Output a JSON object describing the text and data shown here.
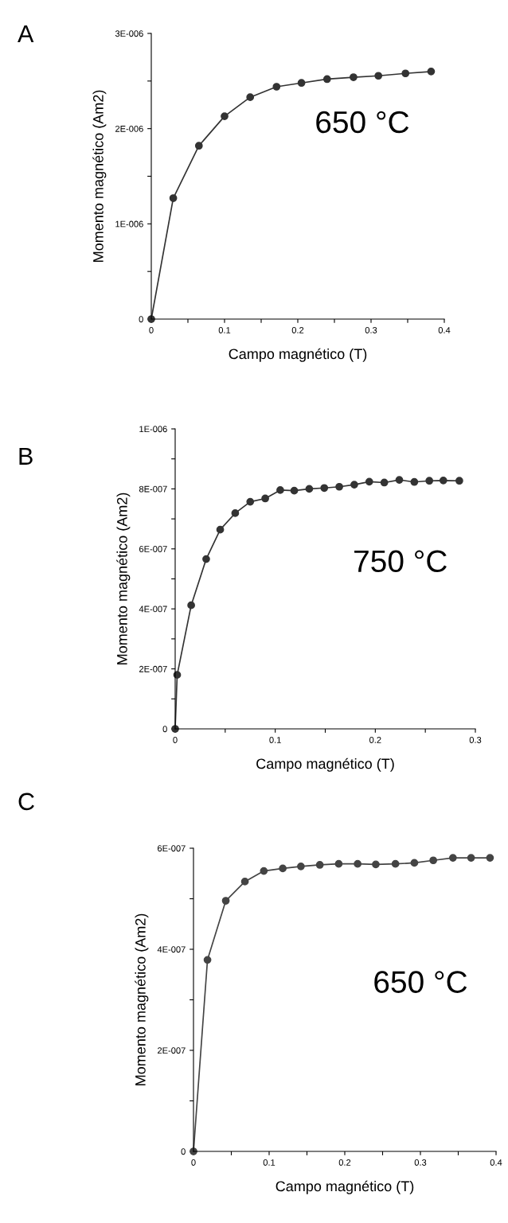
{
  "chart_data": [
    {
      "type": "line",
      "title": "A",
      "xlabel": "Campo magnético (T)",
      "ylabel": "Momento magnético (Am2)",
      "annotations": [
        "650 °C"
      ],
      "marker": "circle",
      "line_style": "solid",
      "grid": false,
      "legend": false,
      "x": [
        0,
        0.03,
        0.065,
        0.1,
        0.135,
        0.171,
        0.205,
        0.24,
        0.276,
        0.31,
        0.347,
        0.382
      ],
      "series": [
        {
          "color": "#333333",
          "values": [
            0,
            1.27e-06,
            1.82e-06,
            2.13e-06,
            2.33e-06,
            2.44e-06,
            2.48e-06,
            2.52e-06,
            2.54e-06,
            2.555e-06,
            2.58e-06,
            2.6e-06
          ]
        }
      ],
      "xlim": [
        0,
        0.4
      ],
      "xticks": [
        0,
        {
          "value": 0.05,
          "label": null
        },
        0.1,
        {
          "value": 0.15,
          "label": null
        },
        0.2,
        {
          "value": 0.25,
          "label": null
        },
        0.3,
        {
          "value": 0.35,
          "label": null
        },
        0.4
      ],
      "ylim": [
        0,
        3e-06
      ],
      "yticks": [
        {
          "value": 0,
          "label": "0"
        },
        {
          "value": 5e-07,
          "label": null
        },
        {
          "value": 1e-06,
          "label": "1E-006"
        },
        {
          "value": 1.5e-06,
          "label": null
        },
        {
          "value": 2e-06,
          "label": "2E-006"
        },
        {
          "value": 2.5e-06,
          "label": null
        },
        {
          "value": 3e-06,
          "label": "3E-006"
        }
      ]
    },
    {
      "type": "line",
      "title": "B",
      "xlabel": "Campo magnético (T)",
      "ylabel": "Momento magnético (Am2)",
      "annotations": [
        "750 °C"
      ],
      "marker": "circle",
      "line_style": "solid",
      "grid": false,
      "legend": false,
      "x": [
        0,
        0.002,
        0.016,
        0.031,
        0.045,
        0.06,
        0.075,
        0.09,
        0.105,
        0.119,
        0.134,
        0.149,
        0.164,
        0.179,
        0.194,
        0.209,
        0.224,
        0.239,
        0.254,
        0.268,
        0.284
      ],
      "series": [
        {
          "color": "#333333",
          "values": [
            0,
            1.8e-07,
            4.12e-07,
            5.66e-07,
            6.64e-07,
            7.19e-07,
            7.57e-07,
            7.68e-07,
            7.96e-07,
            7.94e-07,
            8e-07,
            8.03e-07,
            8.07e-07,
            8.14e-07,
            8.24e-07,
            8.21e-07,
            8.3e-07,
            8.23e-07,
            8.27e-07,
            8.28e-07,
            8.27e-07
          ]
        }
      ],
      "xlim": [
        0,
        0.3
      ],
      "xticks": [
        0,
        {
          "value": 0.05,
          "label": null
        },
        0.1,
        {
          "value": 0.15,
          "label": null
        },
        0.2,
        {
          "value": 0.25,
          "label": null
        },
        0.3
      ],
      "ylim": [
        0,
        1e-06
      ],
      "yticks": [
        {
          "value": 0,
          "label": "0"
        },
        {
          "value": 1e-07,
          "label": null
        },
        {
          "value": 2e-07,
          "label": "2E-007"
        },
        {
          "value": 3e-07,
          "label": null
        },
        {
          "value": 4e-07,
          "label": "4E-007"
        },
        {
          "value": 5e-07,
          "label": null
        },
        {
          "value": 6e-07,
          "label": "6E-007"
        },
        {
          "value": 7e-07,
          "label": null
        },
        {
          "value": 8e-07,
          "label": "8E-007"
        },
        {
          "value": 9e-07,
          "label": null
        },
        {
          "value": 1e-06,
          "label": "1E-006"
        }
      ]
    },
    {
      "type": "line",
      "title": "C",
      "xlabel": "Campo magnético (T)",
      "ylabel": "Momento magnético (Am2)",
      "annotations": [
        "650 °C"
      ],
      "marker": "circle",
      "line_style": "solid",
      "grid": false,
      "legend": false,
      "x": [
        0,
        0.0185,
        0.0427,
        0.068,
        0.093,
        0.118,
        0.142,
        0.167,
        0.192,
        0.217,
        0.241,
        0.267,
        0.292,
        0.317,
        0.343,
        0.367,
        0.392
      ],
      "series": [
        {
          "color": "#444444",
          "values": [
            0,
            3.79e-07,
            4.96e-07,
            5.34e-07,
            5.55e-07,
            5.6e-07,
            5.64e-07,
            5.67e-07,
            5.69e-07,
            5.69e-07,
            5.68e-07,
            5.69e-07,
            5.71e-07,
            5.76e-07,
            5.81e-07,
            5.81e-07,
            5.81e-07
          ]
        }
      ],
      "xlim": [
        0,
        0.4
      ],
      "xticks": [
        0,
        {
          "value": 0.05,
          "label": null
        },
        0.1,
        {
          "value": 0.15,
          "label": null
        },
        0.2,
        {
          "value": 0.25,
          "label": null
        },
        0.3,
        {
          "value": 0.35,
          "label": null
        },
        0.4
      ],
      "ylim": [
        0,
        6e-07
      ],
      "yticks": [
        {
          "value": 0,
          "label": "0"
        },
        {
          "value": 1e-07,
          "label": null
        },
        {
          "value": 2e-07,
          "label": "2E-007"
        },
        {
          "value": 3e-07,
          "label": null
        },
        {
          "value": 4e-07,
          "label": "4E-007"
        },
        {
          "value": 5e-07,
          "label": null
        },
        {
          "value": 6e-07,
          "label": "6E-007"
        }
      ]
    }
  ]
}
